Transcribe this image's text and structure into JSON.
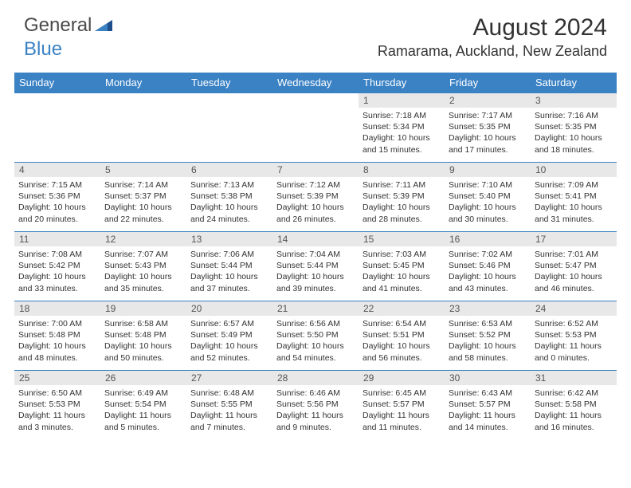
{
  "brand": {
    "general": "General",
    "blue": "Blue"
  },
  "title": "August 2024",
  "location": "Ramarama, Auckland, New Zealand",
  "colors": {
    "header_bg": "#3b82c4",
    "header_text": "#ffffff",
    "daynum_bg": "#e8e8e8",
    "body_text": "#333333",
    "row_border": "#3b82c4"
  },
  "typography": {
    "title_fontsize": 30,
    "location_fontsize": 18,
    "header_fontsize": 13,
    "daynum_fontsize": 12,
    "content_fontsize": 10.5
  },
  "day_headers": [
    "Sunday",
    "Monday",
    "Tuesday",
    "Wednesday",
    "Thursday",
    "Friday",
    "Saturday"
  ],
  "weeks": [
    [
      {
        "n": "",
        "sunrise": "",
        "sunset": "",
        "daylight": ""
      },
      {
        "n": "",
        "sunrise": "",
        "sunset": "",
        "daylight": ""
      },
      {
        "n": "",
        "sunrise": "",
        "sunset": "",
        "daylight": ""
      },
      {
        "n": "",
        "sunrise": "",
        "sunset": "",
        "daylight": ""
      },
      {
        "n": "1",
        "sunrise": "Sunrise: 7:18 AM",
        "sunset": "Sunset: 5:34 PM",
        "daylight": "Daylight: 10 hours and 15 minutes."
      },
      {
        "n": "2",
        "sunrise": "Sunrise: 7:17 AM",
        "sunset": "Sunset: 5:35 PM",
        "daylight": "Daylight: 10 hours and 17 minutes."
      },
      {
        "n": "3",
        "sunrise": "Sunrise: 7:16 AM",
        "sunset": "Sunset: 5:35 PM",
        "daylight": "Daylight: 10 hours and 18 minutes."
      }
    ],
    [
      {
        "n": "4",
        "sunrise": "Sunrise: 7:15 AM",
        "sunset": "Sunset: 5:36 PM",
        "daylight": "Daylight: 10 hours and 20 minutes."
      },
      {
        "n": "5",
        "sunrise": "Sunrise: 7:14 AM",
        "sunset": "Sunset: 5:37 PM",
        "daylight": "Daylight: 10 hours and 22 minutes."
      },
      {
        "n": "6",
        "sunrise": "Sunrise: 7:13 AM",
        "sunset": "Sunset: 5:38 PM",
        "daylight": "Daylight: 10 hours and 24 minutes."
      },
      {
        "n": "7",
        "sunrise": "Sunrise: 7:12 AM",
        "sunset": "Sunset: 5:39 PM",
        "daylight": "Daylight: 10 hours and 26 minutes."
      },
      {
        "n": "8",
        "sunrise": "Sunrise: 7:11 AM",
        "sunset": "Sunset: 5:39 PM",
        "daylight": "Daylight: 10 hours and 28 minutes."
      },
      {
        "n": "9",
        "sunrise": "Sunrise: 7:10 AM",
        "sunset": "Sunset: 5:40 PM",
        "daylight": "Daylight: 10 hours and 30 minutes."
      },
      {
        "n": "10",
        "sunrise": "Sunrise: 7:09 AM",
        "sunset": "Sunset: 5:41 PM",
        "daylight": "Daylight: 10 hours and 31 minutes."
      }
    ],
    [
      {
        "n": "11",
        "sunrise": "Sunrise: 7:08 AM",
        "sunset": "Sunset: 5:42 PM",
        "daylight": "Daylight: 10 hours and 33 minutes."
      },
      {
        "n": "12",
        "sunrise": "Sunrise: 7:07 AM",
        "sunset": "Sunset: 5:43 PM",
        "daylight": "Daylight: 10 hours and 35 minutes."
      },
      {
        "n": "13",
        "sunrise": "Sunrise: 7:06 AM",
        "sunset": "Sunset: 5:44 PM",
        "daylight": "Daylight: 10 hours and 37 minutes."
      },
      {
        "n": "14",
        "sunrise": "Sunrise: 7:04 AM",
        "sunset": "Sunset: 5:44 PM",
        "daylight": "Daylight: 10 hours and 39 minutes."
      },
      {
        "n": "15",
        "sunrise": "Sunrise: 7:03 AM",
        "sunset": "Sunset: 5:45 PM",
        "daylight": "Daylight: 10 hours and 41 minutes."
      },
      {
        "n": "16",
        "sunrise": "Sunrise: 7:02 AM",
        "sunset": "Sunset: 5:46 PM",
        "daylight": "Daylight: 10 hours and 43 minutes."
      },
      {
        "n": "17",
        "sunrise": "Sunrise: 7:01 AM",
        "sunset": "Sunset: 5:47 PM",
        "daylight": "Daylight: 10 hours and 46 minutes."
      }
    ],
    [
      {
        "n": "18",
        "sunrise": "Sunrise: 7:00 AM",
        "sunset": "Sunset: 5:48 PM",
        "daylight": "Daylight: 10 hours and 48 minutes."
      },
      {
        "n": "19",
        "sunrise": "Sunrise: 6:58 AM",
        "sunset": "Sunset: 5:48 PM",
        "daylight": "Daylight: 10 hours and 50 minutes."
      },
      {
        "n": "20",
        "sunrise": "Sunrise: 6:57 AM",
        "sunset": "Sunset: 5:49 PM",
        "daylight": "Daylight: 10 hours and 52 minutes."
      },
      {
        "n": "21",
        "sunrise": "Sunrise: 6:56 AM",
        "sunset": "Sunset: 5:50 PM",
        "daylight": "Daylight: 10 hours and 54 minutes."
      },
      {
        "n": "22",
        "sunrise": "Sunrise: 6:54 AM",
        "sunset": "Sunset: 5:51 PM",
        "daylight": "Daylight: 10 hours and 56 minutes."
      },
      {
        "n": "23",
        "sunrise": "Sunrise: 6:53 AM",
        "sunset": "Sunset: 5:52 PM",
        "daylight": "Daylight: 10 hours and 58 minutes."
      },
      {
        "n": "24",
        "sunrise": "Sunrise: 6:52 AM",
        "sunset": "Sunset: 5:53 PM",
        "daylight": "Daylight: 11 hours and 0 minutes."
      }
    ],
    [
      {
        "n": "25",
        "sunrise": "Sunrise: 6:50 AM",
        "sunset": "Sunset: 5:53 PM",
        "daylight": "Daylight: 11 hours and 3 minutes."
      },
      {
        "n": "26",
        "sunrise": "Sunrise: 6:49 AM",
        "sunset": "Sunset: 5:54 PM",
        "daylight": "Daylight: 11 hours and 5 minutes."
      },
      {
        "n": "27",
        "sunrise": "Sunrise: 6:48 AM",
        "sunset": "Sunset: 5:55 PM",
        "daylight": "Daylight: 11 hours and 7 minutes."
      },
      {
        "n": "28",
        "sunrise": "Sunrise: 6:46 AM",
        "sunset": "Sunset: 5:56 PM",
        "daylight": "Daylight: 11 hours and 9 minutes."
      },
      {
        "n": "29",
        "sunrise": "Sunrise: 6:45 AM",
        "sunset": "Sunset: 5:57 PM",
        "daylight": "Daylight: 11 hours and 11 minutes."
      },
      {
        "n": "30",
        "sunrise": "Sunrise: 6:43 AM",
        "sunset": "Sunset: 5:57 PM",
        "daylight": "Daylight: 11 hours and 14 minutes."
      },
      {
        "n": "31",
        "sunrise": "Sunrise: 6:42 AM",
        "sunset": "Sunset: 5:58 PM",
        "daylight": "Daylight: 11 hours and 16 minutes."
      }
    ]
  ]
}
